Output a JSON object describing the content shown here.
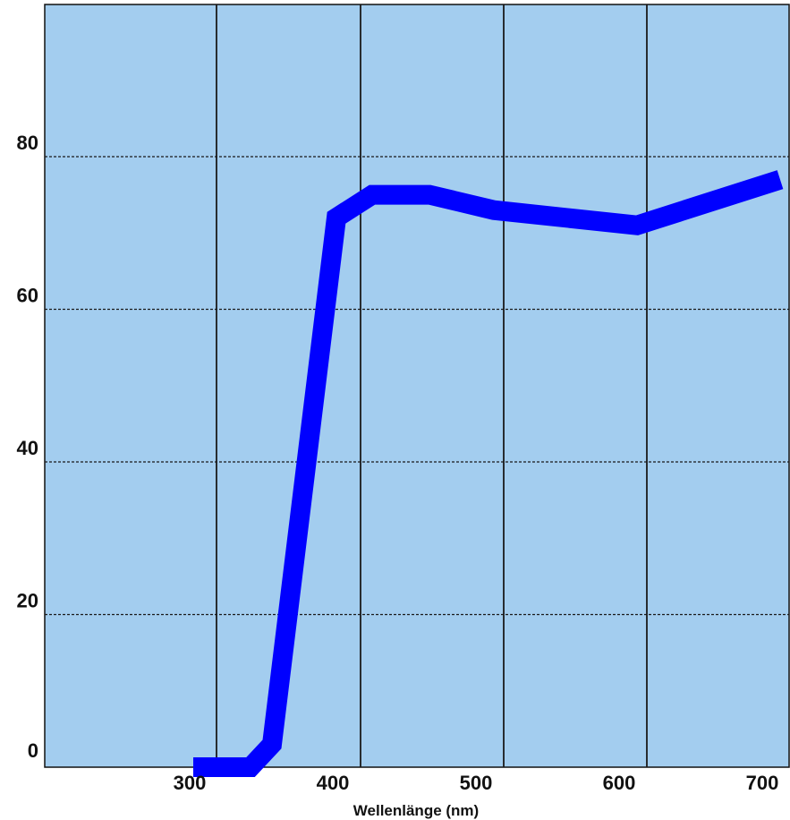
{
  "chart_data": {
    "type": "line",
    "xlabel": "Wellenlänge (nm)",
    "ylabel": "",
    "xlim": [
      300,
      700
    ],
    "ylim": [
      0,
      80
    ],
    "x_ticks": [
      300,
      400,
      500,
      600,
      700
    ],
    "y_ticks": [
      0,
      20,
      40,
      60,
      80
    ],
    "x_tick_labels": [
      "300",
      "400",
      "500",
      "600",
      "700"
    ],
    "y_tick_labels": [
      "0",
      "20",
      "40",
      "60",
      "80"
    ],
    "grid": true,
    "background_color": "#a3cdef",
    "series": [
      {
        "color": "#0000ff",
        "x": [
          300,
          340,
          355,
          400,
          425,
          465,
          510,
          610,
          710
        ],
        "y": [
          0,
          0,
          3,
          72,
          75,
          75,
          73,
          71,
          77
        ]
      }
    ]
  }
}
